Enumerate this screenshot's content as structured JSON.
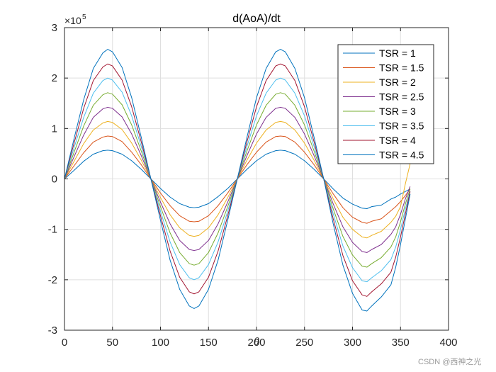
{
  "chart_data": {
    "type": "line",
    "title": "d(AoA)/dt",
    "xlabel": "θ",
    "ylabel": "",
    "xlim": [
      0,
      400
    ],
    "ylim": [
      -3,
      3
    ],
    "y_scale_label": "×10",
    "y_scale_exponent": "5",
    "xticks": [
      "0",
      "50",
      "100",
      "150",
      "200",
      "250",
      "300",
      "350",
      "400"
    ],
    "yticks": [
      "-3",
      "-2",
      "-1",
      "0",
      "1",
      "2",
      "3"
    ],
    "grid": true,
    "legend_position": "top-right",
    "x": [
      0,
      10,
      20,
      30,
      40,
      45,
      50,
      60,
      70,
      80,
      90,
      100,
      110,
      120,
      130,
      135,
      140,
      150,
      160,
      170,
      180,
      190,
      200,
      210,
      220,
      225,
      230,
      240,
      250,
      260,
      270,
      280,
      290,
      300,
      310,
      315,
      320,
      330,
      340,
      345,
      350,
      355,
      360
    ],
    "series": [
      {
        "name": "TSR = 1",
        "color": "#0072BD",
        "values": [
          0.0,
          0.17,
          0.35,
          0.49,
          0.56,
          0.57,
          0.56,
          0.49,
          0.36,
          0.19,
          0.0,
          -0.19,
          -0.36,
          -0.49,
          -0.56,
          -0.57,
          -0.56,
          -0.49,
          -0.35,
          -0.19,
          0.0,
          0.19,
          0.36,
          0.49,
          0.56,
          0.57,
          0.56,
          0.49,
          0.36,
          0.19,
          0.0,
          -0.2,
          -0.38,
          -0.5,
          -0.58,
          -0.59,
          -0.55,
          -0.52,
          -0.4,
          -0.36,
          -0.3,
          -0.25,
          -0.2
        ]
      },
      {
        "name": "TSR = 1.5",
        "color": "#D95319",
        "values": [
          0.0,
          0.26,
          0.52,
          0.73,
          0.83,
          0.85,
          0.84,
          0.74,
          0.53,
          0.28,
          0.0,
          -0.28,
          -0.53,
          -0.73,
          -0.84,
          -0.85,
          -0.84,
          -0.73,
          -0.53,
          -0.28,
          0.0,
          0.28,
          0.53,
          0.73,
          0.84,
          0.85,
          0.84,
          0.73,
          0.53,
          0.28,
          0.0,
          -0.3,
          -0.57,
          -0.76,
          -0.86,
          -0.88,
          -0.84,
          -0.79,
          -0.63,
          -0.55,
          -0.45,
          -0.33,
          -0.2
        ]
      },
      {
        "name": "TSR = 2",
        "color": "#EDB120",
        "values": [
          0.0,
          0.35,
          0.7,
          0.97,
          1.11,
          1.14,
          1.12,
          0.98,
          0.71,
          0.37,
          0.0,
          -0.37,
          -0.71,
          -0.97,
          -1.12,
          -1.14,
          -1.12,
          -0.97,
          -0.71,
          -0.37,
          0.0,
          0.37,
          0.71,
          0.97,
          1.12,
          1.14,
          1.12,
          0.97,
          0.71,
          0.37,
          0.0,
          -0.4,
          -0.76,
          -1.0,
          -1.15,
          -1.17,
          -1.12,
          -1.04,
          -0.86,
          -0.74,
          -0.55,
          -0.1,
          0.3
        ]
      },
      {
        "name": "TSR = 2.5",
        "color": "#7E2F8E",
        "values": [
          0.0,
          0.44,
          0.87,
          1.22,
          1.39,
          1.42,
          1.4,
          1.23,
          0.89,
          0.46,
          0.0,
          -0.46,
          -0.89,
          -1.22,
          -1.4,
          -1.42,
          -1.4,
          -1.22,
          -0.89,
          -0.46,
          0.0,
          0.46,
          0.89,
          1.22,
          1.4,
          1.42,
          1.4,
          1.22,
          0.89,
          0.46,
          0.0,
          -0.5,
          -0.95,
          -1.26,
          -1.44,
          -1.46,
          -1.4,
          -1.3,
          -1.1,
          -0.95,
          -0.7,
          -0.4,
          -0.15
        ]
      },
      {
        "name": "TSR = 3",
        "color": "#77AC30",
        "values": [
          0.0,
          0.53,
          1.05,
          1.46,
          1.67,
          1.71,
          1.68,
          1.47,
          1.07,
          0.55,
          0.0,
          -0.55,
          -1.07,
          -1.46,
          -1.68,
          -1.71,
          -1.68,
          -1.46,
          -1.07,
          -0.55,
          0.0,
          0.55,
          1.07,
          1.46,
          1.68,
          1.71,
          1.68,
          1.46,
          1.07,
          0.55,
          0.0,
          -0.6,
          -1.14,
          -1.51,
          -1.73,
          -1.75,
          -1.68,
          -1.56,
          -1.35,
          -1.15,
          -0.85,
          -0.5,
          -0.2
        ]
      },
      {
        "name": "TSR = 3.5",
        "color": "#4DBEEE",
        "values": [
          0.0,
          0.62,
          1.22,
          1.7,
          1.95,
          2.0,
          1.96,
          1.72,
          1.25,
          0.64,
          0.0,
          -0.64,
          -1.25,
          -1.7,
          -1.96,
          -2.0,
          -1.96,
          -1.7,
          -1.25,
          -0.64,
          0.0,
          0.64,
          1.25,
          1.7,
          1.96,
          2.0,
          1.96,
          1.7,
          1.25,
          0.64,
          0.0,
          -0.7,
          -1.33,
          -1.76,
          -2.02,
          -2.04,
          -1.96,
          -1.82,
          -1.6,
          -1.35,
          -1.0,
          -0.6,
          -0.25
        ]
      },
      {
        "name": "TSR = 4",
        "color": "#A2142F",
        "values": [
          0.0,
          0.71,
          1.4,
          1.95,
          2.22,
          2.28,
          2.24,
          1.96,
          1.43,
          0.73,
          0.0,
          -0.73,
          -1.43,
          -1.95,
          -2.24,
          -2.28,
          -2.24,
          -1.95,
          -1.43,
          -0.73,
          0.0,
          0.73,
          1.43,
          1.95,
          2.24,
          2.28,
          2.24,
          1.95,
          1.43,
          0.73,
          0.0,
          -0.8,
          -1.52,
          -2.02,
          -2.3,
          -2.33,
          -2.24,
          -2.08,
          -1.85,
          -1.55,
          -1.15,
          -0.7,
          -0.25
        ]
      },
      {
        "name": "TSR = 4.5",
        "color": "#0072BD",
        "values": [
          0.0,
          0.8,
          1.57,
          2.19,
          2.5,
          2.57,
          2.52,
          2.21,
          1.61,
          0.82,
          0.0,
          -0.82,
          -1.61,
          -2.19,
          -2.52,
          -2.57,
          -2.52,
          -2.19,
          -1.61,
          -0.82,
          0.0,
          0.82,
          1.61,
          2.19,
          2.52,
          2.57,
          2.52,
          2.19,
          1.61,
          0.82,
          0.0,
          -0.9,
          -1.71,
          -2.27,
          -2.6,
          -2.62,
          -2.52,
          -2.34,
          -2.1,
          -1.75,
          -1.3,
          -0.8,
          -0.3
        ]
      }
    ]
  },
  "watermark": "CSDN @西神之光"
}
